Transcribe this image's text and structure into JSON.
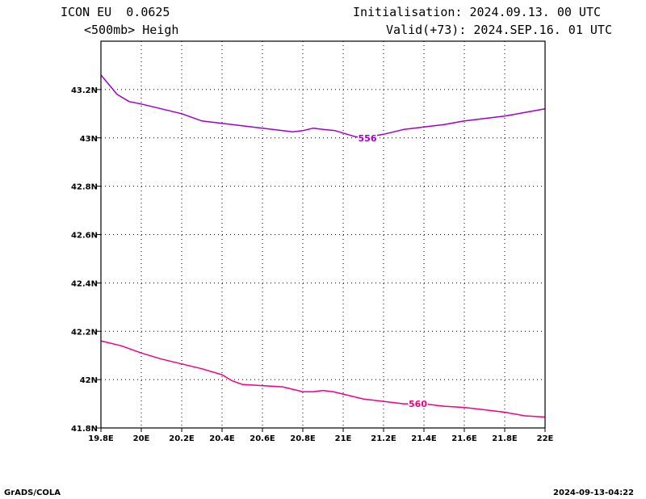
{
  "header": {
    "model": "ICON EU  0.0625",
    "field": "<500mb> Heigh",
    "init": "Initialisation: 2024.09.13. 00 UTC",
    "valid": "Valid(+73): 2024.SEP.16. 01 UTC"
  },
  "footer": {
    "left": "GrADS/COLA",
    "right": "2024-09-13-04:22"
  },
  "chart_data": {
    "type": "line",
    "xlim": [
      19.8,
      22.0
    ],
    "ylim": [
      41.8,
      43.4
    ],
    "x_ticks": [
      19.8,
      20.0,
      20.2,
      20.4,
      20.6,
      20.8,
      21.0,
      21.2,
      21.4,
      21.6,
      21.8,
      22.0
    ],
    "x_tick_labels": [
      "19.8E",
      "20E",
      "20.2E",
      "20.4E",
      "20.6E",
      "20.8E",
      "21E",
      "21.2E",
      "21.4E",
      "21.6E",
      "21.8E",
      "22E"
    ],
    "y_ticks": [
      41.8,
      42.0,
      42.2,
      42.4,
      42.6,
      42.8,
      43.0,
      43.2
    ],
    "y_tick_labels": [
      "41.8N",
      "42N",
      "42.2N",
      "42.4N",
      "42.6N",
      "42.8N",
      "43N",
      "43.2N"
    ],
    "grid": true,
    "series": [
      {
        "name": "556",
        "color": "#a000c8",
        "label_at": [
          21.12,
          43.0
        ],
        "points": [
          [
            19.8,
            43.26
          ],
          [
            19.84,
            43.22
          ],
          [
            19.88,
            43.18
          ],
          [
            19.94,
            43.15
          ],
          [
            20.0,
            43.14
          ],
          [
            20.1,
            43.12
          ],
          [
            20.2,
            43.1
          ],
          [
            20.3,
            43.07
          ],
          [
            20.4,
            43.06
          ],
          [
            20.5,
            43.05
          ],
          [
            20.6,
            43.04
          ],
          [
            20.7,
            43.03
          ],
          [
            20.75,
            43.025
          ],
          [
            20.8,
            43.03
          ],
          [
            20.85,
            43.04
          ],
          [
            20.9,
            43.035
          ],
          [
            20.96,
            43.03
          ],
          [
            21.0,
            43.02
          ],
          [
            21.06,
            43.005
          ],
          [
            21.1,
            43.0
          ],
          [
            21.2,
            43.015
          ],
          [
            21.3,
            43.035
          ],
          [
            21.4,
            43.045
          ],
          [
            21.5,
            43.055
          ],
          [
            21.6,
            43.07
          ],
          [
            21.7,
            43.08
          ],
          [
            21.8,
            43.09
          ],
          [
            21.9,
            43.105
          ],
          [
            22.0,
            43.12
          ]
        ]
      },
      {
        "name": "560",
        "color": "#f00082",
        "label_at": [
          21.37,
          41.9
        ],
        "points": [
          [
            19.8,
            42.16
          ],
          [
            19.9,
            42.14
          ],
          [
            20.0,
            42.11
          ],
          [
            20.1,
            42.085
          ],
          [
            20.2,
            42.065
          ],
          [
            20.3,
            42.045
          ],
          [
            20.4,
            42.02
          ],
          [
            20.45,
            41.995
          ],
          [
            20.5,
            41.98
          ],
          [
            20.6,
            41.975
          ],
          [
            20.7,
            41.97
          ],
          [
            20.8,
            41.95
          ],
          [
            20.85,
            41.95
          ],
          [
            20.9,
            41.955
          ],
          [
            20.95,
            41.95
          ],
          [
            21.0,
            41.94
          ],
          [
            21.1,
            41.92
          ],
          [
            21.2,
            41.91
          ],
          [
            21.3,
            41.9
          ],
          [
            21.4,
            41.9
          ],
          [
            21.5,
            41.89
          ],
          [
            21.6,
            41.885
          ],
          [
            21.7,
            41.875
          ],
          [
            21.8,
            41.865
          ],
          [
            21.9,
            41.85
          ],
          [
            22.0,
            41.845
          ]
        ]
      }
    ]
  }
}
